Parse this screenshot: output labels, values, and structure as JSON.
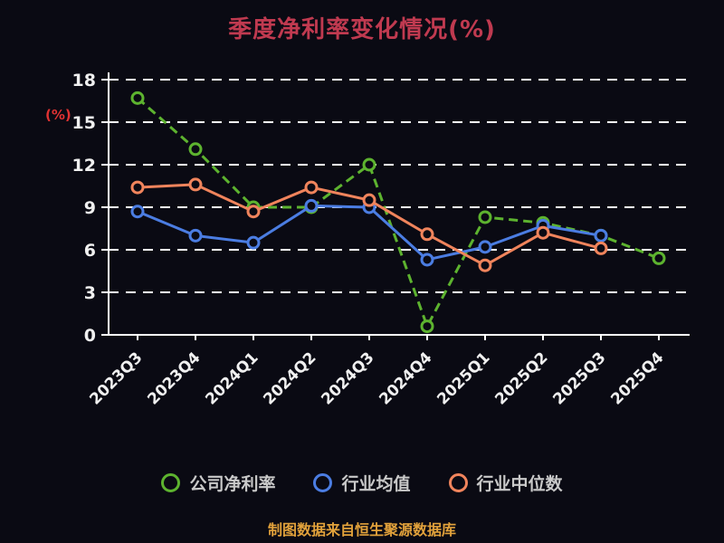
{
  "title": "季度净利率变化情况(%)",
  "ylabel": "(%)",
  "footer": "制图数据来自恒生聚源数据库",
  "colors": {
    "background": "#0a0a13",
    "title": "#c03a50",
    "ylabel": "#e03232",
    "axis": "#ffffff",
    "grid": "#ffffff",
    "tick_label": "#f0f0f0",
    "legend_text": "#c9c9c9",
    "footer": "#e2a23b"
  },
  "chart_data": {
    "type": "line",
    "title": "季度净利率变化情况(%)",
    "xlabel": "",
    "ylabel": "(%)",
    "categories": [
      "2023Q3",
      "2023Q4",
      "2024Q1",
      "2024Q2",
      "2024Q3",
      "2024Q4",
      "2025Q1",
      "2025Q2",
      "2025Q3",
      "2025Q4"
    ],
    "series": [
      {
        "name": "公司净利率",
        "color": "#5db32f",
        "dashed": true,
        "values": [
          16.7,
          13.1,
          9.0,
          9.0,
          12.0,
          0.6,
          8.3,
          7.9,
          7.0,
          5.4
        ]
      },
      {
        "name": "行业均值",
        "color": "#4b7de2",
        "dashed": false,
        "values": [
          8.7,
          7.0,
          6.5,
          9.1,
          9.0,
          5.3,
          6.2,
          7.7,
          7.0,
          null
        ]
      },
      {
        "name": "行业中位数",
        "color": "#f0845c",
        "dashed": false,
        "values": [
          10.4,
          10.6,
          8.7,
          10.4,
          9.5,
          7.1,
          4.9,
          7.2,
          6.1,
          null
        ]
      }
    ],
    "yticks": [
      0,
      3,
      6,
      9,
      12,
      15,
      18
    ],
    "ylim": [
      0,
      18
    ],
    "grid": "horizontal-dashed",
    "legend_position": "bottom"
  }
}
